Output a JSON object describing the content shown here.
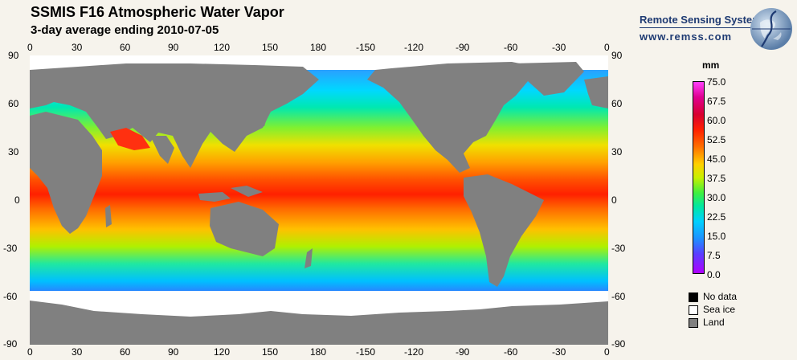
{
  "title": "SSMIS F16 Atmospheric Water Vapor",
  "subtitle": "3-day average ending 2010-07-05",
  "brand": {
    "name": "Remote Sensing Systems",
    "url": "www.remss.com"
  },
  "axes": {
    "lon_labels": [
      "0",
      "30",
      "60",
      "90",
      "120",
      "150",
      "180",
      "-150",
      "-120",
      "-90",
      "-60",
      "-30",
      "0"
    ],
    "lat_labels": [
      "90",
      "60",
      "30",
      "0",
      "-30",
      "-60",
      "-90"
    ]
  },
  "colorbar": {
    "unit": "mm",
    "labels": [
      "75.0",
      "67.5",
      "60.0",
      "52.5",
      "45.0",
      "37.5",
      "30.0",
      "22.5",
      "15.0",
      "7.5",
      "0.0"
    ]
  },
  "legend": [
    {
      "label": "No data",
      "color": "#000000"
    },
    {
      "label": "Sea ice",
      "color": "#ffffff"
    },
    {
      "label": "Land",
      "color": "#808080"
    }
  ],
  "colors": {
    "land": "#808080",
    "sea_ice": "#ffffff",
    "no_data": "#000000"
  }
}
